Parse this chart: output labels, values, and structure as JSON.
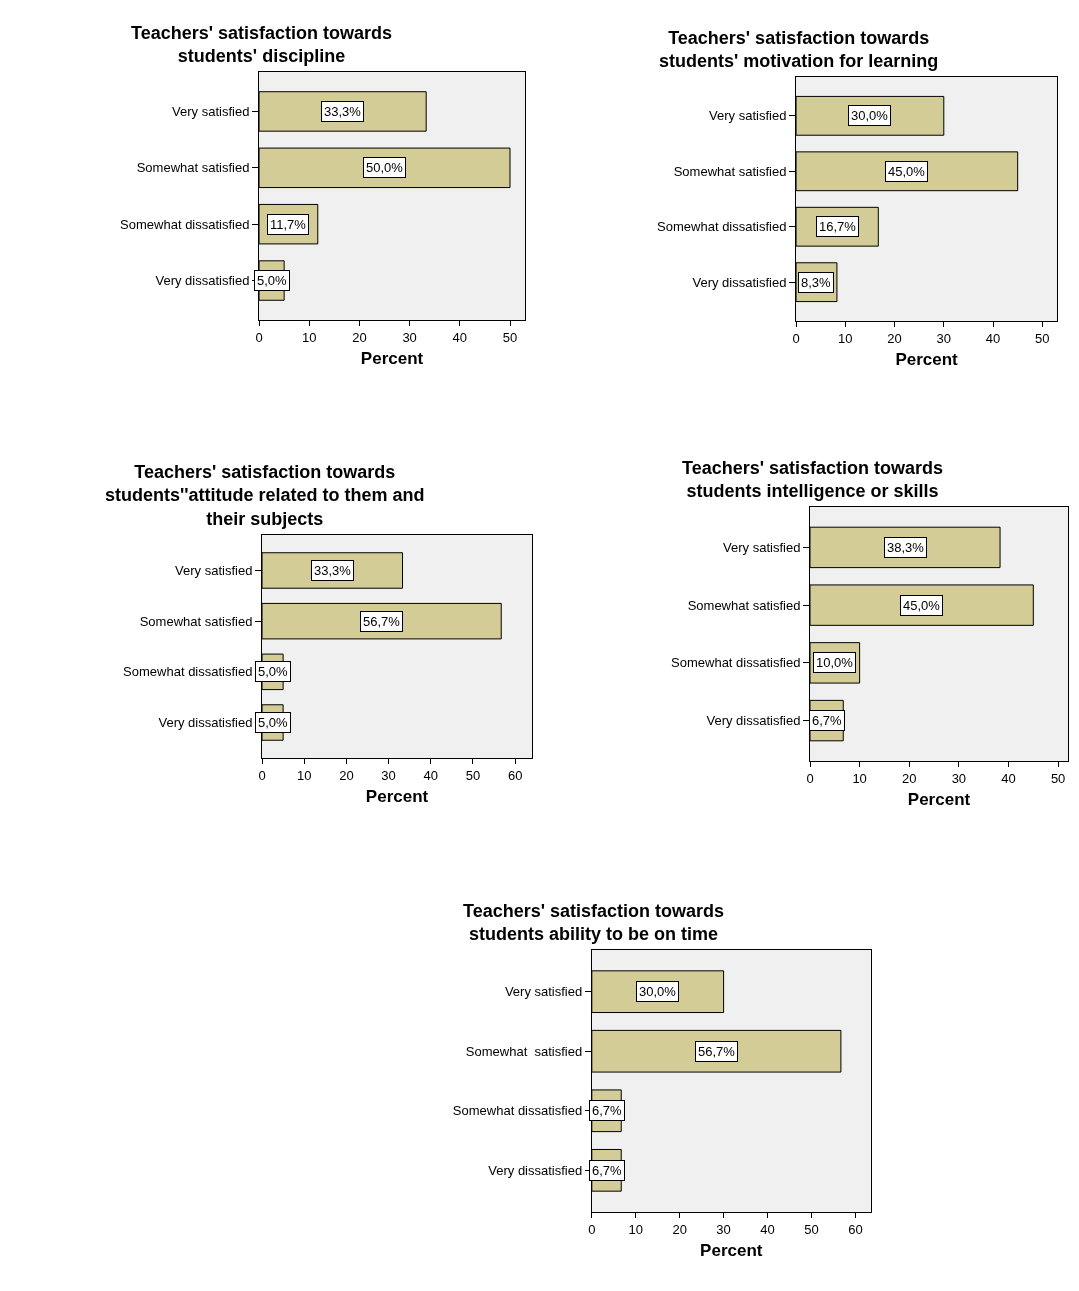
{
  "chart_data": [
    {
      "type": "bar",
      "orientation": "horizontal",
      "title": "Teachers' satisfaction towards\nstudents' discipline",
      "xlabel": "Percent",
      "categories": [
        "Very satisfied",
        "Somewhat satisfied",
        "Somewhat dissatisfied",
        "Very dissatisfied"
      ],
      "values": [
        33.3,
        50.0,
        11.7,
        5.0
      ],
      "value_labels": [
        "33,3%",
        "50,0%",
        "11,7%",
        "5,0%"
      ],
      "color": "#d4cc96",
      "xlim": [
        0,
        53
      ],
      "xticks": [
        0,
        10,
        20,
        30,
        40,
        50
      ],
      "grid": false
    },
    {
      "type": "bar",
      "orientation": "horizontal",
      "title": "Teachers' satisfaction towards\nstudents' motivation for learning",
      "xlabel": "Percent",
      "categories": [
        "Very satisfied",
        "Somewhat satisfied",
        "Somewhat dissatisfied",
        "Very dissatisfied"
      ],
      "values": [
        30.0,
        45.0,
        16.7,
        8.3
      ],
      "value_labels": [
        "30,0%",
        "45,0%",
        "16,7%",
        "8,3%"
      ],
      "color": "#d4cc96",
      "xlim": [
        0,
        53
      ],
      "xticks": [
        0,
        10,
        20,
        30,
        40,
        50
      ],
      "grid": false
    },
    {
      "type": "bar",
      "orientation": "horizontal",
      "title": "Teachers' satisfaction towards\nstudents''attitude related to them and\ntheir subjects",
      "xlabel": "Percent",
      "categories": [
        "Very satisfied",
        "Somewhat satisfied",
        "Somewhat dissatisfied",
        "Very dissatisfied"
      ],
      "values": [
        33.3,
        56.7,
        5.0,
        5.0
      ],
      "value_labels": [
        "33,3%",
        "56,7%",
        "5,0%",
        "5,0%"
      ],
      "color": "#d4cc96",
      "xlim": [
        0,
        64
      ],
      "xticks": [
        0,
        10,
        20,
        30,
        40,
        50,
        60
      ],
      "grid": false
    },
    {
      "type": "bar",
      "orientation": "horizontal",
      "title": "Teachers' satisfaction towards\nstudents intelligence or skills",
      "xlabel": "Percent",
      "categories": [
        "Very satisfied",
        "Somewhat satisfied",
        "Somewhat dissatisfied",
        "Very dissatisfied"
      ],
      "values": [
        38.3,
        45.0,
        10.0,
        6.7
      ],
      "value_labels": [
        "38,3%",
        "45,0%",
        "10,0%",
        "6,7%"
      ],
      "color": "#d4cc96",
      "xlim": [
        0,
        52
      ],
      "xticks": [
        0,
        10,
        20,
        30,
        40,
        50
      ],
      "grid": false
    },
    {
      "type": "bar",
      "orientation": "horizontal",
      "title": "Teachers' satisfaction towards\nstudents ability to be on time",
      "xlabel": "Percent",
      "categories": [
        "Very satisfied",
        "Somewhat  satisfied",
        "Somewhat dissatisfied",
        "Very dissatisfied"
      ],
      "values": [
        30.0,
        56.7,
        6.7,
        6.7
      ],
      "value_labels": [
        "30,0%",
        "56,7%",
        "6,7%",
        "6,7%"
      ],
      "color": "#d4cc96",
      "xlim": [
        0,
        63.5
      ],
      "xticks": [
        0,
        10,
        20,
        30,
        40,
        50,
        60
      ],
      "grid": false
    }
  ]
}
